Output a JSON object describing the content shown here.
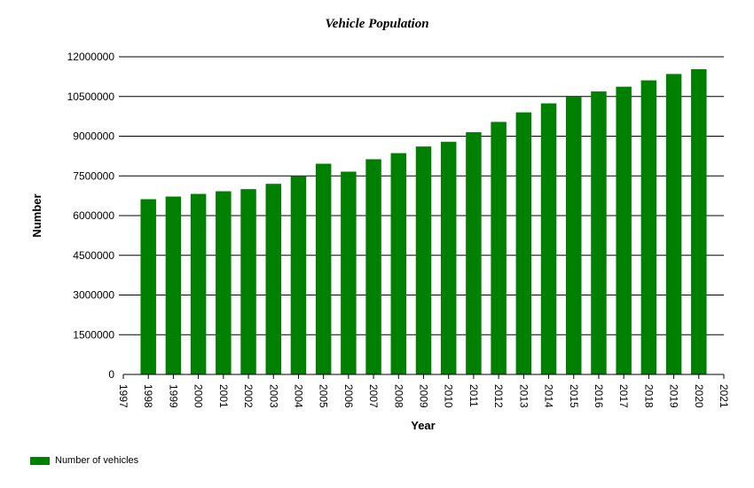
{
  "chart_data": {
    "type": "bar",
    "title": "Vehicle Population",
    "xlabel": "Year",
    "ylabel": "Number",
    "categories": [
      "1998",
      "1999",
      "2000",
      "2001",
      "2002",
      "2003",
      "2004",
      "2005",
      "2006",
      "2007",
      "2008",
      "2009",
      "2010",
      "2011",
      "2012",
      "2013",
      "2014",
      "2015",
      "2016",
      "2017",
      "2018",
      "2019",
      "2020"
    ],
    "x_ticks": [
      "1997",
      "1998",
      "1999",
      "2000",
      "2001",
      "2002",
      "2003",
      "2004",
      "2005",
      "2006",
      "2007",
      "2008",
      "2009",
      "2010",
      "2011",
      "2012",
      "2013",
      "2014",
      "2015",
      "2016",
      "2017",
      "2018",
      "2019",
      "2020",
      "2021"
    ],
    "xlim": [
      1997,
      2021
    ],
    "series": [
      {
        "name": "Number of vehicles",
        "color": "#008000",
        "values": [
          6620000,
          6720000,
          6820000,
          6920000,
          7000000,
          7200000,
          7480000,
          7960000,
          7660000,
          8130000,
          8360000,
          8610000,
          8790000,
          9150000,
          9540000,
          9900000,
          10240000,
          10490000,
          10690000,
          10870000,
          11110000,
          11350000,
          11530000
        ]
      }
    ],
    "ylim": [
      0,
      12000000
    ],
    "y_ticks": [
      0,
      1500000,
      3000000,
      4500000,
      6000000,
      7500000,
      9000000,
      10500000,
      12000000
    ],
    "grid": "horizontal",
    "legend_position": "bottom-left"
  }
}
